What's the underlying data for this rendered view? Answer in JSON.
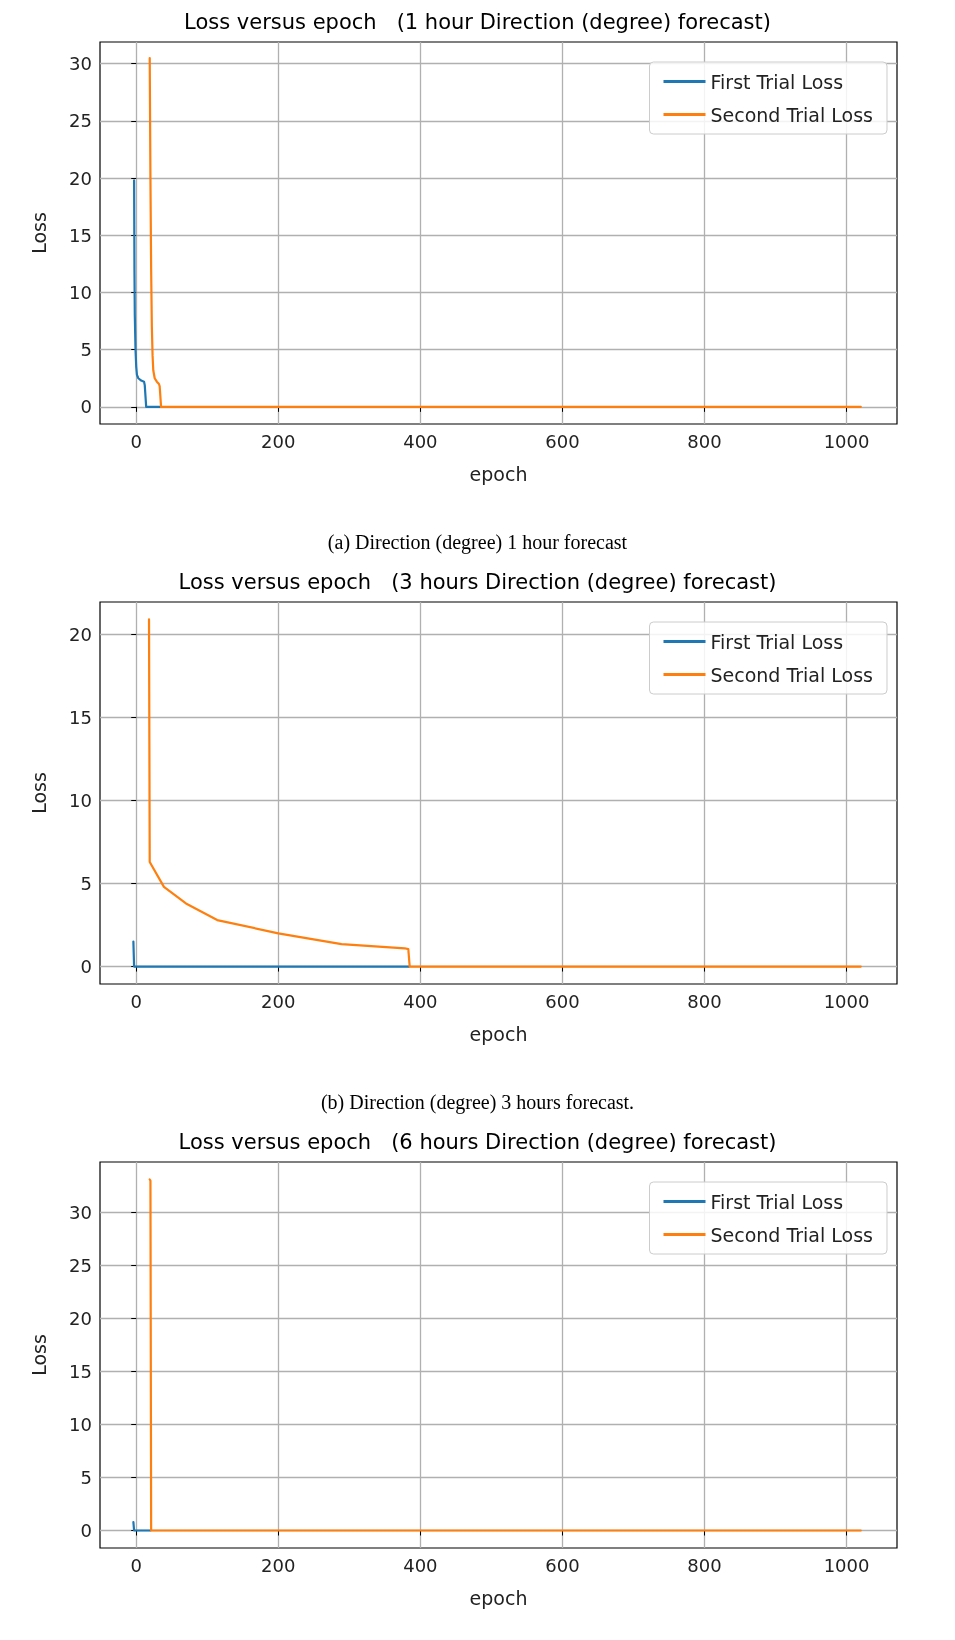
{
  "chart_data": [
    {
      "type": "line",
      "title": "Loss versus epoch   (1 hour Direction (degree) forecast)",
      "xlabel": "epoch",
      "ylabel": "Loss",
      "annotations": [
        "(a) Direction (degree) 1 hour forecast"
      ],
      "xlim": [
        -51,
        1071
      ],
      "xticks": [
        0,
        200,
        400,
        600,
        800,
        1000
      ],
      "ylim": [
        -1.5,
        31.9
      ],
      "yticks": [
        0,
        5,
        10,
        15,
        20,
        25,
        30
      ],
      "grid": true,
      "legend": "top right",
      "line_style": "solid",
      "series": [
        {
          "name": "First Trial Loss",
          "color": "#1f77b4",
          "x": [
            -3,
            -2.5,
            -2,
            -1,
            0,
            1,
            3,
            7,
            11,
            12,
            14,
            33
          ],
          "values": [
            19.8,
            12,
            8,
            5,
            3.5,
            2.8,
            2.5,
            2.3,
            2.2,
            1.9,
            0,
            0
          ]
        },
        {
          "name": "Second Trial Loss",
          "color": "#ff7f0e",
          "x": [
            19,
            20,
            21,
            22,
            23,
            24,
            26,
            29,
            32,
            33,
            35,
            1020
          ],
          "values": [
            30.5,
            20,
            12,
            7,
            4.5,
            3.2,
            2.5,
            2.2,
            2,
            1.8,
            0,
            0
          ]
        }
      ]
    },
    {
      "type": "line",
      "title": "Loss versus epoch   (3 hours Direction (degree) forecast)",
      "xlabel": "epoch",
      "ylabel": "Loss",
      "annotations": [
        "(b) Direction (degree) 3 hours forecast."
      ],
      "xlim": [
        -51,
        1071
      ],
      "xticks": [
        0,
        200,
        400,
        600,
        800,
        1000
      ],
      "ylim": [
        -1.05,
        21.95
      ],
      "yticks": [
        0,
        5,
        10,
        15,
        20
      ],
      "grid": true,
      "legend": "top right",
      "line_style": "solid",
      "series": [
        {
          "name": "First Trial Loss",
          "color": "#1f77b4",
          "x": [
            -4,
            -3,
            384
          ],
          "values": [
            1.5,
            0,
            0
          ]
        },
        {
          "name": "Second Trial Loss",
          "color": "#ff7f0e",
          "x": [
            18,
            19,
            39,
            70,
            114,
            200,
            289,
            378,
            383,
            385,
            1020
          ],
          "values": [
            20.9,
            6.3,
            4.8,
            3.8,
            2.8,
            2,
            1.35,
            1.1,
            1.05,
            0,
            0
          ]
        }
      ]
    },
    {
      "type": "line",
      "title": "Loss versus epoch   (6 hours Direction (degree) forecast)",
      "xlabel": "epoch",
      "ylabel": "Loss",
      "xlim": [
        -51,
        1071
      ],
      "xticks": [
        0,
        200,
        400,
        600,
        800,
        1000
      ],
      "ylim": [
        -1.65,
        34.75
      ],
      "yticks": [
        0,
        5,
        10,
        15,
        20,
        25,
        30
      ],
      "grid": true,
      "legend": "top right",
      "line_style": "solid",
      "series": [
        {
          "name": "First Trial Loss",
          "color": "#1f77b4",
          "x": [
            -4,
            -3,
            20
          ],
          "values": [
            0.8,
            0,
            0
          ]
        },
        {
          "name": "Second Trial Loss",
          "color": "#ff7f0e",
          "x": [
            19,
            20,
            21,
            1020
          ],
          "values": [
            33.1,
            33,
            0,
            0
          ]
        }
      ]
    }
  ]
}
